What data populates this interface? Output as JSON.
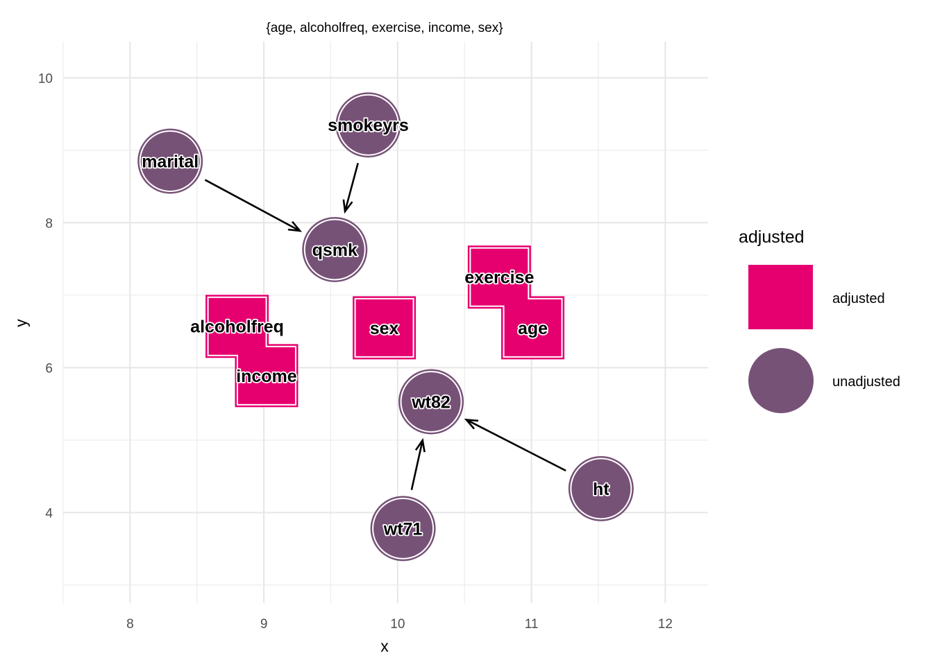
{
  "chart_data": {
    "type": "dag",
    "subtitle": "{age, alcoholfreq, exercise, income, sex}",
    "xlabel": "x",
    "ylabel": "y",
    "xlim": [
      7.5,
      12.32
    ],
    "ylim": [
      2.75,
      10.5
    ],
    "x_ticks": [
      8,
      9,
      10,
      11,
      12
    ],
    "y_ticks": [
      4,
      6,
      8,
      10
    ],
    "grid": true,
    "colors": {
      "adjusted": "#e6006f",
      "unadjusted": "#775277"
    },
    "nodes": [
      {
        "name": "marital",
        "x": 8.3,
        "y": 8.85,
        "status": "unadjusted"
      },
      {
        "name": "smokeyrs",
        "x": 9.78,
        "y": 9.35,
        "status": "unadjusted"
      },
      {
        "name": "qsmk",
        "x": 9.53,
        "y": 7.63,
        "status": "unadjusted"
      },
      {
        "name": "exercise",
        "x": 10.76,
        "y": 7.25,
        "status": "adjusted"
      },
      {
        "name": "alcoholfreq",
        "x": 8.8,
        "y": 6.57,
        "status": "adjusted"
      },
      {
        "name": "sex",
        "x": 9.9,
        "y": 6.55,
        "status": "adjusted"
      },
      {
        "name": "age",
        "x": 11.01,
        "y": 6.55,
        "status": "adjusted"
      },
      {
        "name": "income",
        "x": 9.02,
        "y": 5.89,
        "status": "adjusted"
      },
      {
        "name": "wt82",
        "x": 10.25,
        "y": 5.53,
        "status": "unadjusted"
      },
      {
        "name": "ht",
        "x": 11.52,
        "y": 4.33,
        "status": "unadjusted"
      },
      {
        "name": "wt71",
        "x": 10.04,
        "y": 3.78,
        "status": "unadjusted"
      }
    ],
    "edges": [
      {
        "from": "marital",
        "to": "qsmk"
      },
      {
        "from": "smokeyrs",
        "to": "qsmk"
      },
      {
        "from": "wt71",
        "to": "wt82"
      },
      {
        "from": "ht",
        "to": "wt82"
      }
    ],
    "legend": {
      "title": "adjusted",
      "position": "right",
      "items": [
        {
          "label": "adjusted",
          "shape": "square"
        },
        {
          "label": "unadjusted",
          "shape": "circle"
        }
      ]
    }
  }
}
